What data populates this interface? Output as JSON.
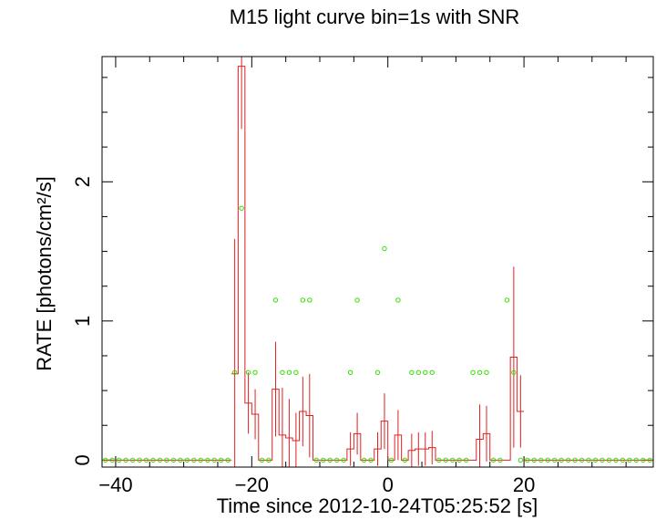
{
  "chart_data": {
    "type": "line",
    "title": "M15 light curve bin=1s with SNR",
    "xlabel": "Time since 2012-10-24T05:25:52 [s]",
    "ylabel": "RATE [photons/cm²/s]",
    "xlim": [
      -42,
      39
    ],
    "ylim": [
      -0.05,
      2.9
    ],
    "xticks_major": [
      -40,
      -20,
      0,
      20
    ],
    "xticks_minor_step": 5,
    "yticks_major": [
      0,
      1,
      2
    ],
    "yticks_minor_step": 0.25,
    "xtick_labels": [
      "−40",
      "−20",
      "0",
      "20"
    ],
    "ytick_labels": [
      "0",
      "1",
      "2"
    ],
    "grid": false,
    "colors": {
      "rate": "#e02020",
      "snr": "#33dd00"
    },
    "series": [
      {
        "kind": "rate_step",
        "color": "#e02020",
        "bins": [
          {
            "x0": -23,
            "x1": -22,
            "y": 0.62,
            "err": 0.97
          },
          {
            "x0": -22,
            "x1": -21,
            "y": 2.83,
            "err": 0.45
          },
          {
            "x0": -21,
            "x1": -20,
            "y": 0.41,
            "err": 0.22
          },
          {
            "x0": -20,
            "x1": -19,
            "y": 0.33,
            "err": 0.18
          },
          {
            "x0": -19,
            "x1": -18,
            "y": 0.0,
            "err": 0.0
          },
          {
            "x0": -18,
            "x1": -17,
            "y": 0.0,
            "err": 0.0
          },
          {
            "x0": -17,
            "x1": -16,
            "y": 0.51,
            "err": 0.34
          },
          {
            "x0": -16,
            "x1": -15,
            "y": 0.18,
            "err": 0.34
          },
          {
            "x0": -15,
            "x1": -14,
            "y": 0.16,
            "err": 0.28
          },
          {
            "x0": -14,
            "x1": -13,
            "y": 0.14,
            "err": 0.2
          },
          {
            "x0": -13,
            "x1": -12,
            "y": 0.35,
            "err": 0.25
          },
          {
            "x0": -12,
            "x1": -11,
            "y": 0.32,
            "err": 0.3
          },
          {
            "x0": -11,
            "x1": -10,
            "y": 0.0,
            "err": 0.0
          },
          {
            "x0": -10,
            "x1": -9,
            "y": 0.0,
            "err": 0.0
          },
          {
            "x0": -9,
            "x1": -8,
            "y": 0.0,
            "err": 0.0
          },
          {
            "x0": -8,
            "x1": -7,
            "y": 0.0,
            "err": 0.0
          },
          {
            "x0": -7,
            "x1": -6,
            "y": 0.0,
            "err": 0.0
          },
          {
            "x0": -6,
            "x1": -5,
            "y": 0.08,
            "err": 0.12
          },
          {
            "x0": -5,
            "x1": -4,
            "y": 0.19,
            "err": 0.15
          },
          {
            "x0": -4,
            "x1": -3,
            "y": 0.0,
            "err": 0.0
          },
          {
            "x0": -3,
            "x1": -2,
            "y": 0.0,
            "err": 0.0
          },
          {
            "x0": -2,
            "x1": -1,
            "y": 0.08,
            "err": 0.12
          },
          {
            "x0": -1,
            "x1": 0,
            "y": 0.28,
            "err": 0.2
          },
          {
            "x0": 0,
            "x1": 1,
            "y": 0.0,
            "err": 0.0
          },
          {
            "x0": 1,
            "x1": 2,
            "y": 0.18,
            "err": 0.18
          },
          {
            "x0": 2,
            "x1": 3,
            "y": 0.0,
            "err": 0.0
          },
          {
            "x0": 3,
            "x1": 4,
            "y": 0.07,
            "err": 0.12
          },
          {
            "x0": 4,
            "x1": 5,
            "y": 0.08,
            "err": 0.12
          },
          {
            "x0": 5,
            "x1": 6,
            "y": 0.08,
            "err": 0.12
          },
          {
            "x0": 6,
            "x1": 7,
            "y": 0.09,
            "err": 0.12
          },
          {
            "x0": 7,
            "x1": 8,
            "y": 0.0,
            "err": 0.0
          },
          {
            "x0": 8,
            "x1": 9,
            "y": 0.0,
            "err": 0.0
          },
          {
            "x0": 9,
            "x1": 10,
            "y": 0.0,
            "err": 0.0
          },
          {
            "x0": 10,
            "x1": 11,
            "y": 0.0,
            "err": 0.0
          },
          {
            "x0": 11,
            "x1": 12,
            "y": 0.0,
            "err": 0.0
          },
          {
            "x0": 12,
            "x1": 13,
            "y": 0.0,
            "err": 0.0
          },
          {
            "x0": 13,
            "x1": 14,
            "y": 0.15,
            "err": 0.25
          },
          {
            "x0": 14,
            "x1": 15,
            "y": 0.19,
            "err": 0.2
          },
          {
            "x0": 15,
            "x1": 16,
            "y": 0.0,
            "err": 0.0
          },
          {
            "x0": 16,
            "x1": 17,
            "y": 0.0,
            "err": 0.0
          },
          {
            "x0": 17,
            "x1": 18,
            "y": 0.0,
            "err": 0.0
          },
          {
            "x0": 18,
            "x1": 19,
            "y": 0.74,
            "err": 0.65
          },
          {
            "x0": 19,
            "x1": 20,
            "y": 0.35,
            "err": 0.26
          }
        ]
      },
      {
        "kind": "snr_points",
        "color": "#33dd00",
        "points": [
          {
            "x": -41.5,
            "y": 0
          },
          {
            "x": -40.5,
            "y": 0
          },
          {
            "x": -39.5,
            "y": 0
          },
          {
            "x": -38.5,
            "y": 0
          },
          {
            "x": -37.5,
            "y": 0
          },
          {
            "x": -36.5,
            "y": 0
          },
          {
            "x": -35.5,
            "y": 0
          },
          {
            "x": -34.5,
            "y": 0
          },
          {
            "x": -33.5,
            "y": 0
          },
          {
            "x": -32.5,
            "y": 0
          },
          {
            "x": -31.5,
            "y": 0
          },
          {
            "x": -30.5,
            "y": 0
          },
          {
            "x": -29.5,
            "y": 0
          },
          {
            "x": -28.5,
            "y": 0
          },
          {
            "x": -27.5,
            "y": 0
          },
          {
            "x": -26.5,
            "y": 0
          },
          {
            "x": -25.5,
            "y": 0
          },
          {
            "x": -24.5,
            "y": 0
          },
          {
            "x": -23.5,
            "y": 0
          },
          {
            "x": -22.5,
            "y": 0.63
          },
          {
            "x": -21.5,
            "y": 1.81
          },
          {
            "x": -20.5,
            "y": 0.63
          },
          {
            "x": -19.5,
            "y": 0.63
          },
          {
            "x": -18.5,
            "y": 0
          },
          {
            "x": -17.5,
            "y": 0
          },
          {
            "x": -16.5,
            "y": 1.15
          },
          {
            "x": -15.5,
            "y": 0.63
          },
          {
            "x": -14.5,
            "y": 0.63
          },
          {
            "x": -13.5,
            "y": 0.63
          },
          {
            "x": -12.5,
            "y": 1.15
          },
          {
            "x": -11.5,
            "y": 1.15
          },
          {
            "x": -10.5,
            "y": 0
          },
          {
            "x": -9.5,
            "y": 0
          },
          {
            "x": -8.5,
            "y": 0
          },
          {
            "x": -7.5,
            "y": 0
          },
          {
            "x": -6.5,
            "y": 0
          },
          {
            "x": -5.5,
            "y": 0.63
          },
          {
            "x": -4.5,
            "y": 1.15
          },
          {
            "x": -3.5,
            "y": 0
          },
          {
            "x": -2.5,
            "y": 0
          },
          {
            "x": -1.5,
            "y": 0.63
          },
          {
            "x": -0.5,
            "y": 1.52
          },
          {
            "x": 0.5,
            "y": 0
          },
          {
            "x": 1.5,
            "y": 1.15
          },
          {
            "x": 2.5,
            "y": 0
          },
          {
            "x": 3.5,
            "y": 0.63
          },
          {
            "x": 4.5,
            "y": 0.63
          },
          {
            "x": 5.5,
            "y": 0.63
          },
          {
            "x": 6.5,
            "y": 0.63
          },
          {
            "x": 7.5,
            "y": 0
          },
          {
            "x": 8.5,
            "y": 0
          },
          {
            "x": 9.5,
            "y": 0
          },
          {
            "x": 10.5,
            "y": 0
          },
          {
            "x": 11.5,
            "y": 0
          },
          {
            "x": 12.5,
            "y": 0.63
          },
          {
            "x": 13.5,
            "y": 0.63
          },
          {
            "x": 14.5,
            "y": 0.63
          },
          {
            "x": 15.5,
            "y": 0
          },
          {
            "x": 16.5,
            "y": 0
          },
          {
            "x": 17.5,
            "y": 1.15
          },
          {
            "x": 18.5,
            "y": 0.63
          },
          {
            "x": 19.5,
            "y": 0
          },
          {
            "x": 20.5,
            "y": 0
          },
          {
            "x": 21.5,
            "y": 0
          },
          {
            "x": 22.5,
            "y": 0
          },
          {
            "x": 23.5,
            "y": 0
          },
          {
            "x": 24.5,
            "y": 0
          },
          {
            "x": 25.5,
            "y": 0
          },
          {
            "x": 26.5,
            "y": 0
          },
          {
            "x": 27.5,
            "y": 0
          },
          {
            "x": 28.5,
            "y": 0
          },
          {
            "x": 29.5,
            "y": 0
          },
          {
            "x": 30.5,
            "y": 0
          },
          {
            "x": 31.5,
            "y": 0
          },
          {
            "x": 32.5,
            "y": 0
          },
          {
            "x": 33.5,
            "y": 0
          },
          {
            "x": 34.5,
            "y": 0
          },
          {
            "x": 35.5,
            "y": 0
          },
          {
            "x": 36.5,
            "y": 0
          },
          {
            "x": 37.5,
            "y": 0
          },
          {
            "x": 38.5,
            "y": 0
          }
        ]
      }
    ]
  }
}
